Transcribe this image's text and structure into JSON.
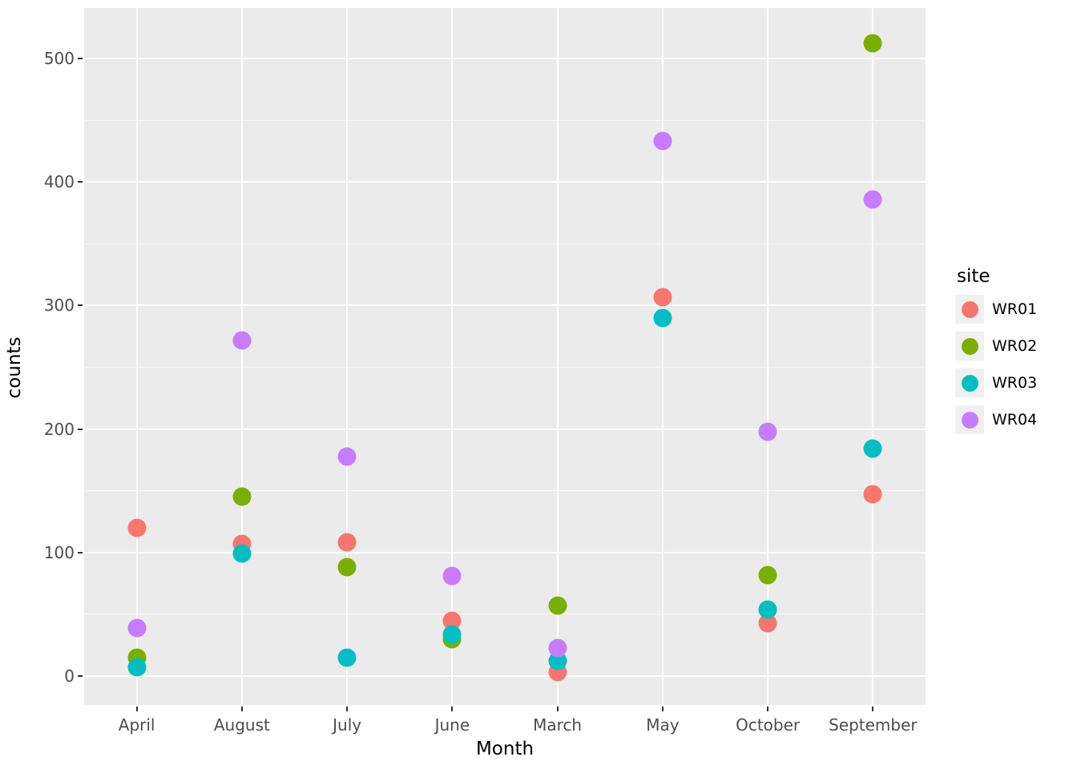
{
  "chart_data": {
    "type": "scatter",
    "title": "",
    "xlabel": "Month",
    "ylabel": "counts",
    "categories": [
      "April",
      "August",
      "July",
      "June",
      "March",
      "May",
      "October",
      "September"
    ],
    "y_ticks": [
      0,
      100,
      200,
      300,
      400,
      500
    ],
    "y_minor_ticks": [
      50,
      150,
      250,
      350,
      450
    ],
    "ylim": [
      -25,
      540
    ],
    "grid": true,
    "legend": {
      "title": "site",
      "position": "right"
    },
    "series": [
      {
        "name": "WR01",
        "color": "#F8766D",
        "values": [
          120,
          107,
          108,
          45,
          3,
          307,
          43,
          147
        ]
      },
      {
        "name": "WR02",
        "color": "#7CAE00",
        "values": [
          15,
          145,
          88,
          30,
          57,
          null,
          82,
          512
        ]
      },
      {
        "name": "WR03",
        "color": "#00BFC4",
        "values": [
          7,
          99,
          15,
          34,
          12,
          290,
          54,
          184
        ]
      },
      {
        "name": "WR04",
        "color": "#C77CFF",
        "values": [
          39,
          272,
          178,
          81,
          23,
          433,
          198,
          386
        ]
      }
    ]
  },
  "colors": {
    "panel_bg": "#EBEBEB",
    "grid": "#FFFFFF",
    "axis_text": "#4D4D4D",
    "axis_title": "#000000"
  }
}
